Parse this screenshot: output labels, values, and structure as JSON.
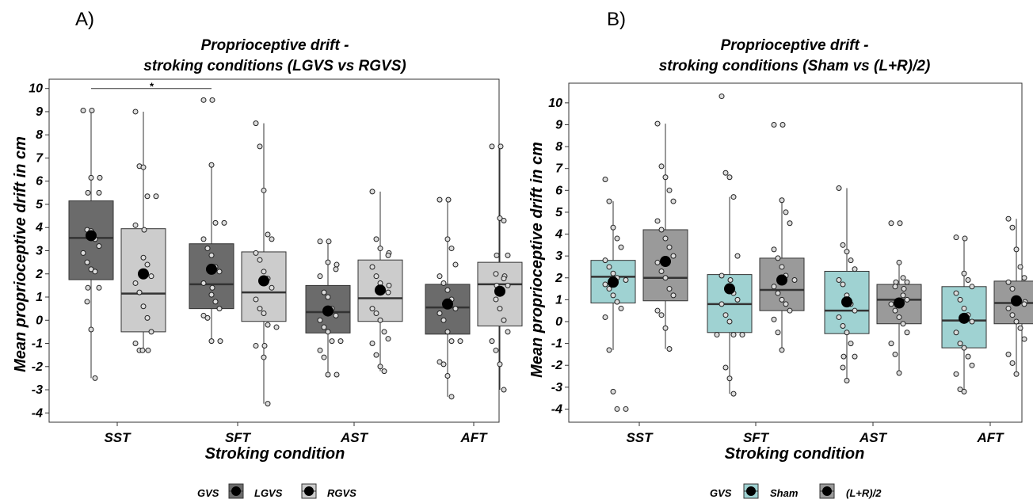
{
  "colors": {
    "lgvs": "#6b6b6b",
    "rgvs": "#cccccc",
    "sham": "#9fd2d2",
    "lr2": "#9a9a9a"
  },
  "chart_data": [
    {
      "type": "box",
      "panel_label": "A)",
      "title_line1": "Proprioceptive drift -",
      "title_line2": "stroking conditions (LGVS vs RGVS)",
      "xlabel": "Stroking condition",
      "ylabel": "Mean proprioceptive drift in cm",
      "ylim": [
        -4.4,
        10.4
      ],
      "yticks": [
        "10",
        "9",
        "8",
        "7",
        "6",
        "5",
        "4",
        "3",
        "2",
        "1",
        "0",
        "-1",
        "-2",
        "-3",
        "-4"
      ],
      "categories": [
        "SST",
        "SFT",
        "AST",
        "AFT"
      ],
      "legend_title": "GVS",
      "significance_marker": "*",
      "significance_between": [
        "SST:LGVS",
        "SFT:LGVS"
      ],
      "series": [
        {
          "name": "LGVS",
          "color_key": "lgvs",
          "boxes": [
            {
              "whisker_low": -2.5,
              "q1": 1.75,
              "median": 3.55,
              "q3": 5.15,
              "whisker_high": 9.05,
              "mean": 3.65,
              "points": [
                9.05,
                9.05,
                6.15,
                6.15,
                5.5,
                5.5,
                3.9,
                3.85,
                3.5,
                3.2,
                2.9,
                2.5,
                2.2,
                2.1,
                1.4,
                1.4,
                0.8,
                -0.4,
                -2.5
              ]
            },
            {
              "whisker_low": -0.9,
              "q1": 0.5,
              "median": 1.55,
              "q3": 3.3,
              "whisker_high": 6.7,
              "mean": 2.2,
              "points": [
                9.5,
                9.5,
                6.7,
                4.2,
                4.2,
                3.5,
                3.1,
                2.8,
                2.3,
                2.1,
                1.6,
                1.4,
                1.1,
                0.8,
                0.5,
                0.2,
                0.1,
                -0.9,
                -0.9
              ]
            },
            {
              "whisker_low": -2.35,
              "q1": -0.55,
              "median": 0.35,
              "q3": 1.5,
              "whisker_high": 3.4,
              "mean": 0.4,
              "points": [
                3.4,
                3.4,
                2.5,
                2.4,
                2.2,
                1.9,
                1.2,
                1.0,
                0.5,
                0.2,
                0.0,
                -0.3,
                -0.5,
                -0.9,
                -0.9,
                -1.3,
                -1.6,
                -2.35,
                -2.35
              ]
            },
            {
              "whisker_low": -3.3,
              "q1": -0.6,
              "median": 0.55,
              "q3": 1.55,
              "whisker_high": 5.2,
              "mean": 0.7,
              "points": [
                5.2,
                5.2,
                3.5,
                3.1,
                2.4,
                1.9,
                1.6,
                1.3,
                0.9,
                0.5,
                0.3,
                0.0,
                -0.5,
                -0.9,
                -0.9,
                -1.8,
                -1.9,
                -2.4,
                -3.3
              ]
            }
          ]
        },
        {
          "name": "RGVS",
          "color_key": "rgvs",
          "boxes": [
            {
              "whisker_low": -1.3,
              "q1": -0.5,
              "median": 1.15,
              "q3": 3.95,
              "whisker_high": 9.0,
              "mean": 2.0,
              "points": [
                9.0,
                6.65,
                6.6,
                5.35,
                5.35,
                4.1,
                3.9,
                2.7,
                2.4,
                1.9,
                1.6,
                1.2,
                0.6,
                0.1,
                -0.5,
                -1.0,
                -1.3,
                -1.3,
                -1.3
              ]
            },
            {
              "whisker_low": -3.6,
              "q1": -0.05,
              "median": 1.2,
              "q3": 2.95,
              "whisker_high": 8.5,
              "mean": 1.7,
              "points": [
                8.5,
                7.5,
                5.6,
                3.7,
                3.5,
                2.9,
                2.6,
                2.1,
                1.8,
                1.4,
                0.9,
                0.5,
                0.3,
                -0.2,
                -0.3,
                -1.1,
                -1.1,
                -1.6,
                -3.6
              ]
            },
            {
              "whisker_low": -2.2,
              "q1": -0.05,
              "median": 0.95,
              "q3": 2.6,
              "whisker_high": 5.55,
              "mean": 1.3,
              "points": [
                5.55,
                3.5,
                3.1,
                2.9,
                2.8,
                2.3,
                1.9,
                1.6,
                1.5,
                1.2,
                0.5,
                0.3,
                0.0,
                -0.5,
                -0.8,
                -1.0,
                -1.5,
                -2.0,
                -2.2
              ]
            },
            {
              "whisker_low": -3.0,
              "q1": -0.25,
              "median": 1.55,
              "q3": 2.5,
              "whisker_high": 7.5,
              "mean": 1.25,
              "points": [
                7.5,
                7.5,
                4.4,
                4.3,
                2.8,
                2.8,
                2.0,
                1.9,
                1.8,
                1.5,
                1.5,
                0.9,
                0.5,
                0.0,
                -0.5,
                -0.9,
                -1.3,
                -1.9,
                -3.0
              ]
            }
          ]
        }
      ]
    },
    {
      "type": "box",
      "panel_label": "B)",
      "title_line1": "Proprioceptive drift -",
      "title_line2": "stroking conditions (Sham vs (L+R)/2)",
      "xlabel": "Stroking condition",
      "ylabel": "Mean proprioceptive drift in cm",
      "ylim": [
        -4.6,
        10.9
      ],
      "yticks": [
        "10",
        "9",
        "8",
        "7",
        "6",
        "5",
        "4",
        "3",
        "2",
        "1",
        "0",
        "-1",
        "-2",
        "-3",
        "-4"
      ],
      "categories": [
        "SST",
        "SFT",
        "AST",
        "AFT"
      ],
      "legend_title": "GVS",
      "series": [
        {
          "name": "Sham",
          "color_key": "sham",
          "boxes": [
            {
              "whisker_low": -1.3,
              "q1": 0.85,
              "median": 2.05,
              "q3": 2.8,
              "whisker_high": 5.5,
              "mean": 1.8,
              "points": [
                6.5,
                5.5,
                4.3,
                3.8,
                3.4,
                2.8,
                2.5,
                2.2,
                2.0,
                1.9,
                1.7,
                1.5,
                1.2,
                0.9,
                0.6,
                0.2,
                -1.3,
                -3.2,
                -4.0,
                -4.0
              ]
            },
            {
              "whisker_low": -3.3,
              "q1": -0.5,
              "median": 0.8,
              "q3": 2.15,
              "whisker_high": 5.7,
              "mean": 1.5,
              "points": [
                10.3,
                6.8,
                6.6,
                5.7,
                3.0,
                2.1,
                1.9,
                1.5,
                1.3,
                1.0,
                0.8,
                0.3,
                0.0,
                -0.6,
                -0.6,
                -0.6,
                -2.1,
                -2.6,
                -3.3
              ]
            },
            {
              "whisker_low": -2.7,
              "q1": -0.55,
              "median": 0.5,
              "q3": 2.3,
              "whisker_high": 6.1,
              "mean": 0.9,
              "points": [
                6.1,
                3.5,
                3.2,
                2.8,
                2.4,
                1.9,
                1.7,
                1.2,
                0.8,
                0.5,
                0.2,
                -0.2,
                -0.5,
                -1.0,
                -1.6,
                -1.6,
                -2.1,
                -2.7
              ]
            },
            {
              "whisker_low": -3.2,
              "q1": -1.2,
              "median": 0.05,
              "q3": 1.6,
              "whisker_high": 3.85,
              "mean": 0.15,
              "points": [
                3.85,
                3.8,
                2.2,
                1.9,
                1.6,
                1.3,
                1.0,
                0.6,
                0.3,
                0.0,
                -0.5,
                -1.0,
                -1.2,
                -1.6,
                -2.0,
                -2.4,
                -3.1,
                -3.2
              ]
            }
          ]
        },
        {
          "name": "(L+R)/2",
          "color_key": "lr2",
          "boxes": [
            {
              "whisker_low": -1.25,
              "q1": 0.95,
              "median": 2.0,
              "q3": 4.2,
              "whisker_high": 9.05,
              "mean": 2.75,
              "points": [
                9.05,
                7.1,
                6.6,
                6.0,
                5.5,
                4.6,
                4.2,
                3.8,
                3.4,
                3.0,
                2.7,
                2.3,
                2.0,
                1.5,
                1.2,
                0.5,
                0.3,
                -0.3,
                -1.25
              ]
            },
            {
              "whisker_low": -1.3,
              "q1": 0.5,
              "median": 1.45,
              "q3": 2.9,
              "whisker_high": 5.55,
              "mean": 1.9,
              "points": [
                9.0,
                9.0,
                5.55,
                5.0,
                4.5,
                3.3,
                2.9,
                2.5,
                2.1,
                1.9,
                1.6,
                1.3,
                1.0,
                0.8,
                0.5,
                0.1,
                -0.5,
                -1.3
              ]
            },
            {
              "whisker_low": -2.35,
              "q1": -0.1,
              "median": 1.0,
              "q3": 1.7,
              "whisker_high": 2.7,
              "mean": 0.85,
              "points": [
                4.5,
                4.5,
                2.7,
                2.0,
                1.8,
                1.8,
                1.6,
                1.5,
                1.2,
                1.0,
                0.8,
                0.5,
                0.2,
                -0.1,
                -0.5,
                -1.0,
                -1.5,
                -2.35
              ]
            },
            {
              "whisker_low": -2.4,
              "q1": -0.1,
              "median": 0.85,
              "q3": 1.85,
              "whisker_high": 4.7,
              "mean": 0.95,
              "points": [
                4.7,
                4.3,
                3.3,
                2.5,
                2.0,
                1.8,
                1.5,
                1.0,
                0.9,
                0.8,
                0.6,
                0.3,
                0.0,
                -0.3,
                -0.8,
                -1.5,
                -1.9,
                -2.4
              ]
            }
          ]
        }
      ]
    }
  ]
}
